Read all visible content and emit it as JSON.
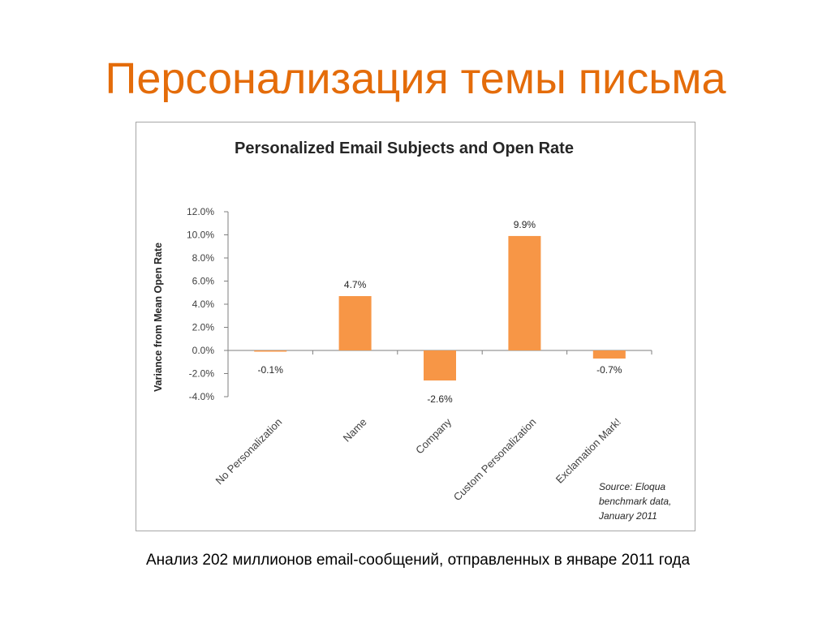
{
  "slide": {
    "title": "Персонализация темы письма",
    "caption": "Анализ 202 миллионов email-сообщений, отправленных в январе 2011 года"
  },
  "colors": {
    "title": "#e46c0a",
    "bar": "#f79646",
    "axis": "#7f7f7f"
  },
  "chart_data": {
    "type": "bar",
    "title": "Personalized Email Subjects and Open Rate",
    "xlabel": "",
    "ylabel": "Variance from Mean Open Rate",
    "categories": [
      "No Personalization",
      "Name",
      "Company",
      "Custom Personalization",
      "Exclamation Mark!"
    ],
    "values": [
      -0.1,
      4.7,
      -2.6,
      9.9,
      -0.7
    ],
    "data_labels": [
      "-0.1%",
      "4.7%",
      "-2.6%",
      "9.9%",
      "-0.7%"
    ],
    "ylim": [
      -4,
      12
    ],
    "yticks": [
      12,
      10,
      8,
      6,
      4,
      2,
      0,
      -2,
      -4
    ],
    "ytick_labels": [
      "12.0%",
      "10.0%",
      "8.0%",
      "6.0%",
      "4.0%",
      "2.0%",
      "0.0%",
      "-2.0%",
      "-4.0%"
    ],
    "grid": false,
    "legend": "none",
    "source_note": "Source: Eloqua benchmark data, January 2011"
  }
}
